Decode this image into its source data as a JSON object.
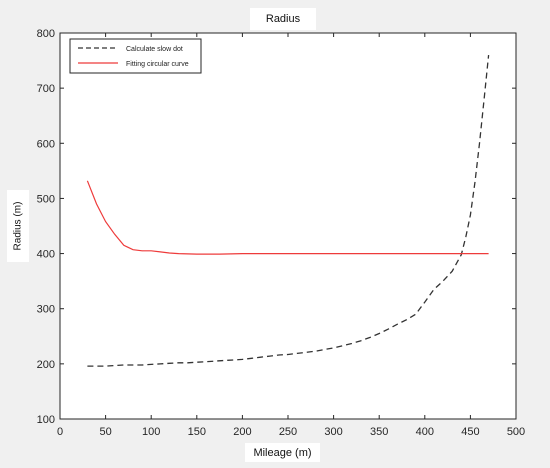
{
  "chart_data": {
    "type": "line",
    "title": "Radius",
    "xlabel": "Mileage (m)",
    "ylabel": "Radius (m)",
    "xlim": [
      0,
      500
    ],
    "ylim": [
      100,
      800
    ],
    "xticks": [
      0,
      50,
      100,
      150,
      200,
      250,
      300,
      350,
      400,
      450,
      500
    ],
    "yticks": [
      100,
      200,
      300,
      400,
      500,
      600,
      700,
      800
    ],
    "grid": false,
    "legend_position": "top-left",
    "series": [
      {
        "name": "Calculate slow dot",
        "color": "#333333",
        "style": "dashed",
        "x": [
          30,
          40,
          50,
          60,
          70,
          80,
          90,
          100,
          110,
          120,
          130,
          140,
          150,
          160,
          170,
          180,
          190,
          200,
          210,
          220,
          230,
          240,
          250,
          260,
          270,
          280,
          290,
          300,
          310,
          320,
          330,
          340,
          350,
          360,
          370,
          380,
          390,
          400,
          410,
          420,
          430,
          440,
          445,
          450,
          455,
          460,
          465,
          470
        ],
        "y": [
          196,
          196,
          196,
          197,
          198,
          198,
          198,
          199,
          200,
          201,
          202,
          202,
          203,
          204,
          205,
          206,
          207,
          208,
          210,
          212,
          214,
          216,
          217,
          219,
          221,
          223,
          226,
          229,
          233,
          237,
          242,
          248,
          255,
          263,
          272,
          280,
          290,
          312,
          335,
          350,
          368,
          398,
          430,
          470,
          530,
          600,
          680,
          760
        ]
      },
      {
        "name": "Fitting circular curve",
        "color": "#ee3b3b",
        "style": "solid",
        "x": [
          30,
          40,
          50,
          60,
          70,
          80,
          90,
          100,
          110,
          120,
          130,
          150,
          175,
          200,
          250,
          300,
          350,
          400,
          450,
          470
        ],
        "y": [
          532,
          490,
          458,
          435,
          415,
          407,
          405,
          405,
          403,
          401,
          400,
          399,
          399,
          400,
          400,
          400,
          400,
          400,
          400,
          400
        ]
      }
    ]
  }
}
